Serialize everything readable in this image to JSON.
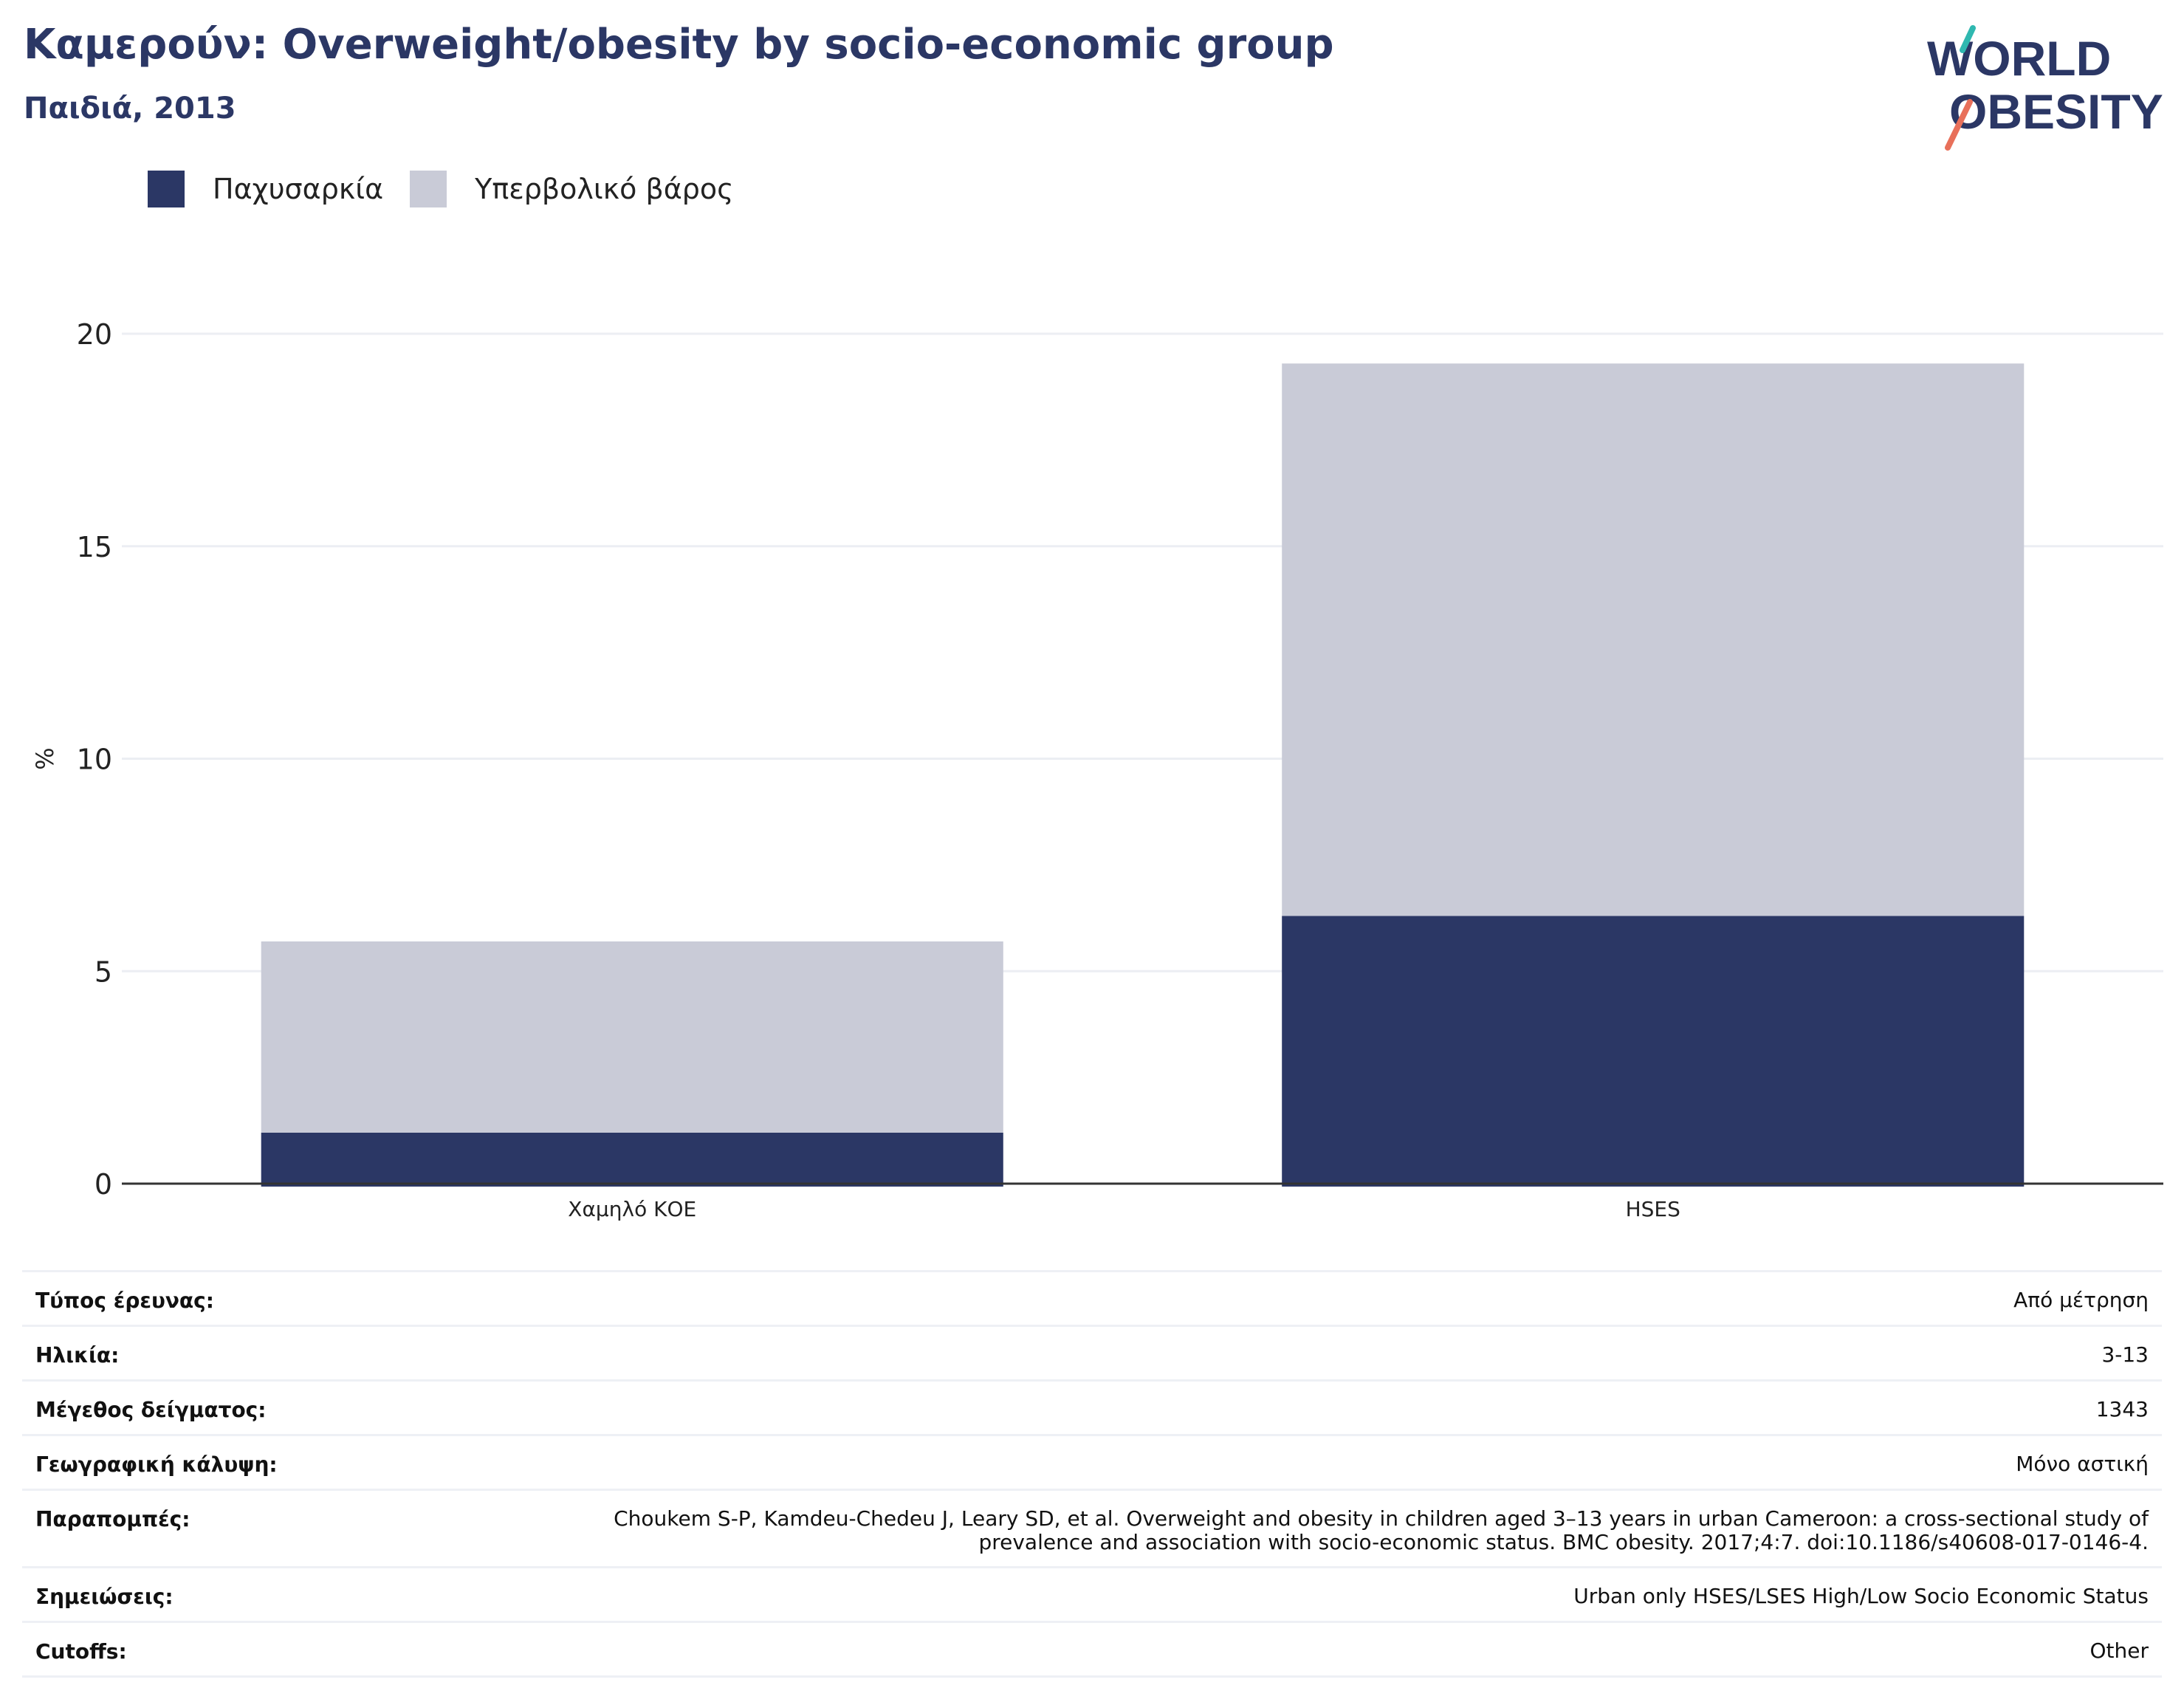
{
  "header": {
    "title": "Καμερούν: Overweight/obesity by socio-economic group",
    "subtitle": "Παιδιά, 2013"
  },
  "logo": {
    "line1": "WORLD",
    "line2": "OBESITY",
    "accent_colors": [
      "#2fb8b0",
      "#e8705a"
    ]
  },
  "colors": {
    "obesity": "#2b3765",
    "overweight": "#c9cbd7",
    "title": "#2b3765"
  },
  "chart_data": {
    "type": "bar",
    "stacked": true,
    "categories": [
      "Χαμηλό ΚΟΕ",
      "HSES"
    ],
    "series": [
      {
        "name": "Παχυσαρκία",
        "values": [
          1.2,
          6.3
        ],
        "color": "#2b3765"
      },
      {
        "name": "Υπερβολικό βάρος",
        "values": [
          4.5,
          13.0
        ],
        "color": "#c9cbd7"
      }
    ],
    "totals": [
      5.7,
      19.3
    ],
    "ylabel": "%",
    "xlabel": "",
    "ylim": [
      0,
      20
    ],
    "yticks": [
      0,
      5,
      10,
      15,
      20
    ],
    "grid": true,
    "legend_position": "top-left"
  },
  "info": {
    "rows": [
      {
        "label": "Τύπος έρευνας:",
        "value": "Από μέτρηση"
      },
      {
        "label": "Ηλικία:",
        "value": "3-13"
      },
      {
        "label": "Μέγεθος δείγματος:",
        "value": "1343"
      },
      {
        "label": "Γεωγραφική κάλυψη:",
        "value": "Μόνο αστική"
      },
      {
        "label": "Παραπομπές:",
        "value": "Choukem S-P, Kamdeu-Chedeu J, Leary SD, et al. Overweight and obesity in children aged 3–13 years in urban Cameroon: a cross-sectional study of prevalence and association with socio-economic status. BMC obesity. 2017;4:7. doi:10.1186/s40608-017-0146-4."
      },
      {
        "label": "Σημειώσεις:",
        "value": "Urban only HSES/LSES High/Low Socio Economic Status"
      },
      {
        "label": "Cutoffs:",
        "value": "Other"
      }
    ]
  }
}
